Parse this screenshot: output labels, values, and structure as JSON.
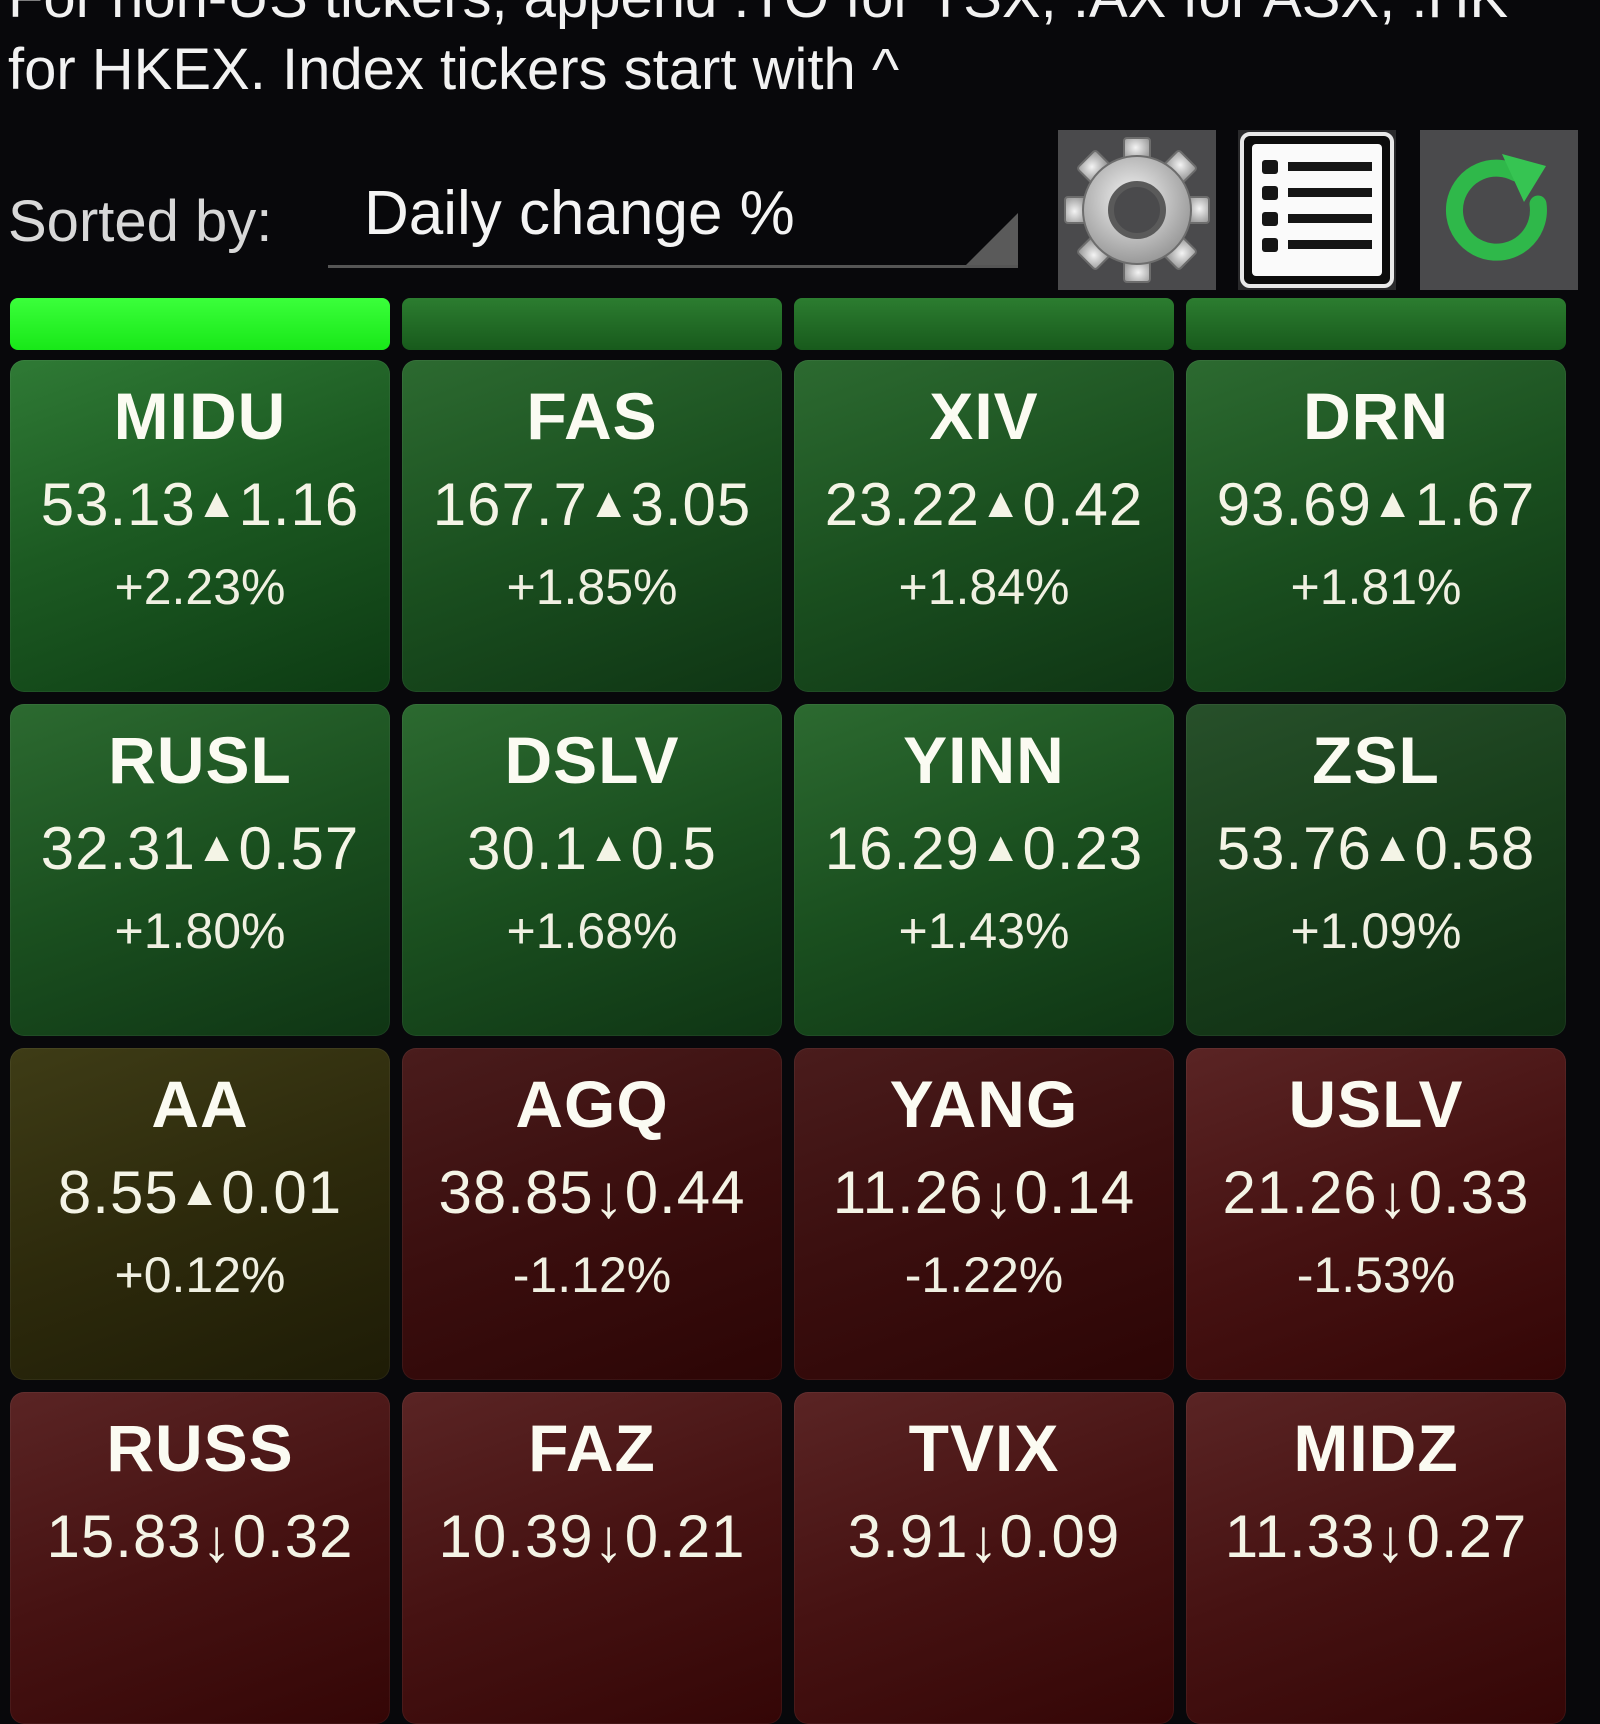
{
  "hint_text": "For non-US tickers, append .TO for TSX, .AX for ASX, .HK\nfor HKEX. Index tickers start with ^",
  "sort": {
    "label": "Sorted by:",
    "value": "Daily change %"
  },
  "toolbar": {
    "settings_icon": "gear-icon",
    "list_icon": "list-icon",
    "refresh_icon": "refresh-icon"
  },
  "colors": {
    "up_strong": "#2f7a35",
    "up_weak": "#183e1b",
    "flat": "#2d2a0c",
    "down": "#461212",
    "bar_bright": "#22ff22",
    "bar_dim": "#1f6a24"
  },
  "column_bars": [
    {
      "level": 1.0
    },
    {
      "level": 0.83
    },
    {
      "level": 0.82
    },
    {
      "level": 0.81
    }
  ],
  "tickers": [
    {
      "symbol": "MIDU",
      "price": "53.13",
      "dir": "up",
      "change": "1.16",
      "pct": "+2.23%"
    },
    {
      "symbol": "FAS",
      "price": "167.7",
      "dir": "up",
      "change": "3.05",
      "pct": "+1.85%"
    },
    {
      "symbol": "XIV",
      "price": "23.22",
      "dir": "up",
      "change": "0.42",
      "pct": "+1.84%"
    },
    {
      "symbol": "DRN",
      "price": "93.69",
      "dir": "up",
      "change": "1.67",
      "pct": "+1.81%"
    },
    {
      "symbol": "RUSL",
      "price": "32.31",
      "dir": "up",
      "change": "0.57",
      "pct": "+1.80%"
    },
    {
      "symbol": "DSLV",
      "price": "30.1",
      "dir": "up",
      "change": "0.5",
      "pct": "+1.68%"
    },
    {
      "symbol": "YINN",
      "price": "16.29",
      "dir": "up",
      "change": "0.23",
      "pct": "+1.43%"
    },
    {
      "symbol": "ZSL",
      "price": "53.76",
      "dir": "up",
      "change": "0.58",
      "pct": "+1.09%"
    },
    {
      "symbol": "AA",
      "price": "8.55",
      "dir": "up",
      "change": "0.01",
      "pct": "+0.12%"
    },
    {
      "symbol": "AGQ",
      "price": "38.85",
      "dir": "down",
      "change": "0.44",
      "pct": "-1.12%"
    },
    {
      "symbol": "YANG",
      "price": "11.26",
      "dir": "down",
      "change": "0.14",
      "pct": "-1.22%"
    },
    {
      "symbol": "USLV",
      "price": "21.26",
      "dir": "down",
      "change": "0.33",
      "pct": "-1.53%"
    },
    {
      "symbol": "RUSS",
      "price": "15.83",
      "dir": "down",
      "change": "0.32",
      "pct": ""
    },
    {
      "symbol": "FAZ",
      "price": "10.39",
      "dir": "down",
      "change": "0.21",
      "pct": ""
    },
    {
      "symbol": "TVIX",
      "price": "3.91",
      "dir": "down",
      "change": "0.09",
      "pct": ""
    },
    {
      "symbol": "MIDZ",
      "price": "11.33",
      "dir": "down",
      "change": "0.27",
      "pct": ""
    }
  ],
  "arrows": {
    "up": "▲",
    "down": "↓"
  }
}
